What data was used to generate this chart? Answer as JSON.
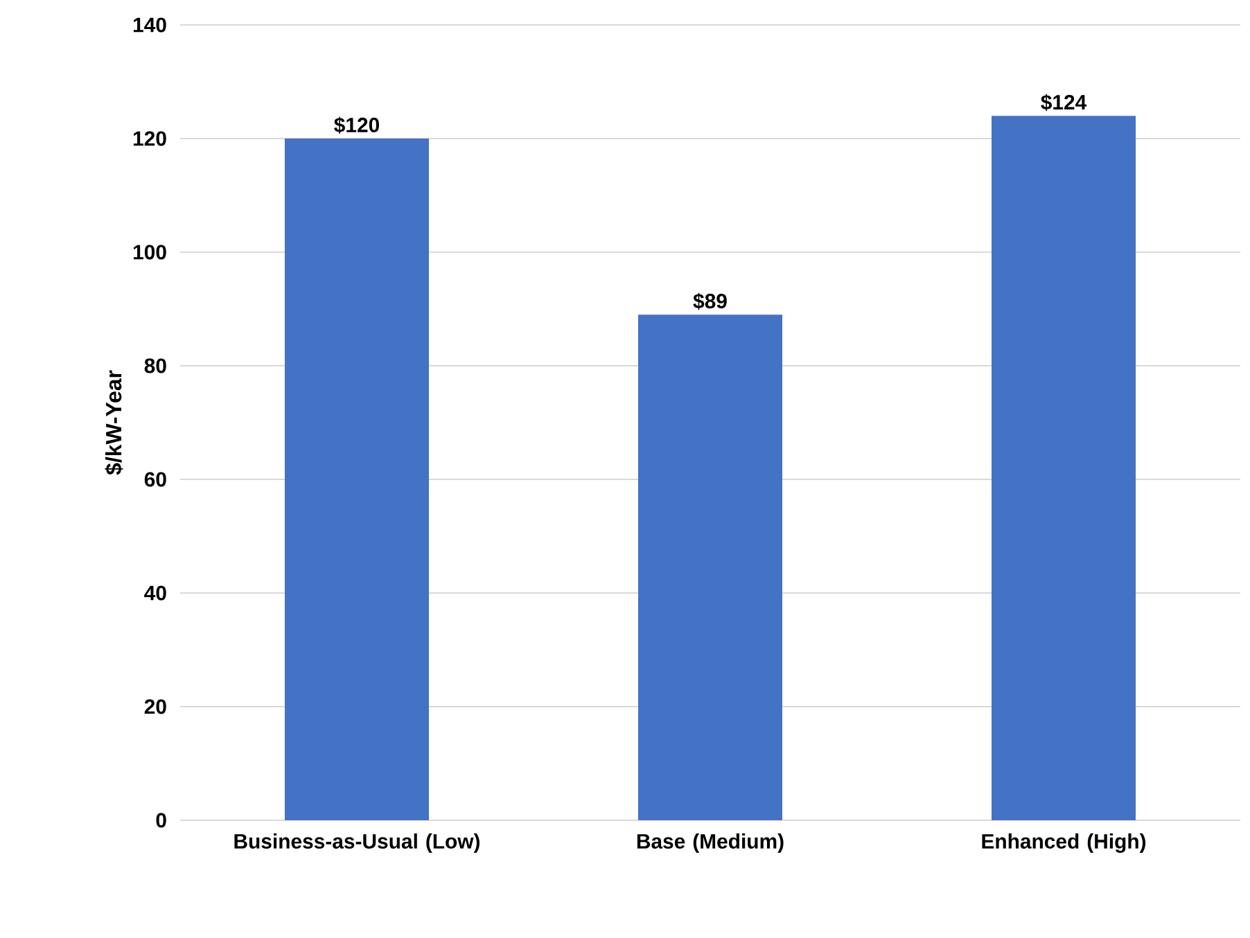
{
  "chart_data": {
    "type": "bar",
    "ylabel": "$/kW-Year",
    "categories": [
      "Business-as-Usual (Low)",
      "Base (Medium)",
      "Enhanced (High)"
    ],
    "values": [
      120,
      89,
      124
    ],
    "value_labels": [
      "$120",
      "$89",
      "$124"
    ],
    "color": "#4472c4",
    "ylim": [
      0,
      140
    ],
    "yticks": [
      0,
      20,
      40,
      60,
      80,
      100,
      120,
      140
    ],
    "grid": "y"
  }
}
